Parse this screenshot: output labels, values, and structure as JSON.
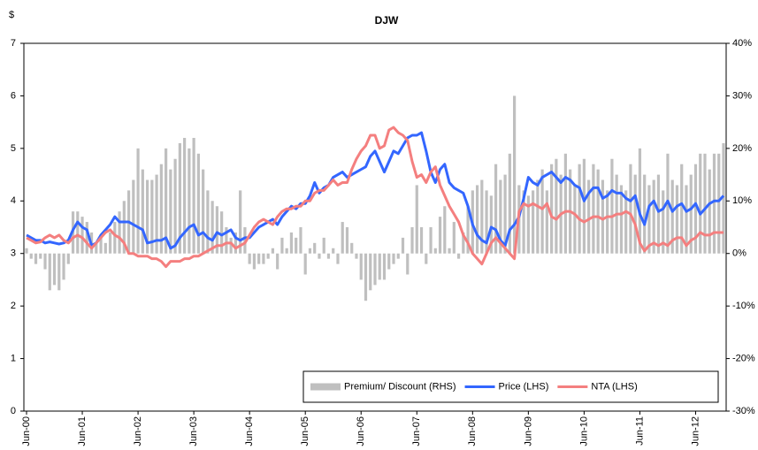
{
  "chart_data": {
    "type": "bar-line",
    "title": "DJW",
    "y_label": "$",
    "categories": [
      "Jun-00",
      null,
      null,
      null,
      null,
      null,
      null,
      null,
      null,
      null,
      null,
      null,
      "Jun-01",
      null,
      null,
      null,
      null,
      null,
      null,
      null,
      null,
      null,
      null,
      null,
      "Jun-02",
      null,
      null,
      null,
      null,
      null,
      null,
      null,
      null,
      null,
      null,
      null,
      "Jun-03",
      null,
      null,
      null,
      null,
      null,
      null,
      null,
      null,
      null,
      null,
      null,
      "Jun-04",
      null,
      null,
      null,
      null,
      null,
      null,
      null,
      null,
      null,
      null,
      null,
      "Jun-05",
      null,
      null,
      null,
      null,
      null,
      null,
      null,
      null,
      null,
      null,
      null,
      "Jun-06",
      null,
      null,
      null,
      null,
      null,
      null,
      null,
      null,
      null,
      null,
      null,
      "Jun-07",
      null,
      null,
      null,
      null,
      null,
      null,
      null,
      null,
      null,
      null,
      null,
      "Jun-08",
      null,
      null,
      null,
      null,
      null,
      null,
      null,
      null,
      null,
      null,
      null,
      "Jun-09",
      null,
      null,
      null,
      null,
      null,
      null,
      null,
      null,
      null,
      null,
      null,
      "Jun-10",
      null,
      null,
      null,
      null,
      null,
      null,
      null,
      null,
      null,
      null,
      null,
      "Jun-11",
      null,
      null,
      null,
      null,
      null,
      null,
      null,
      null,
      null,
      null,
      null,
      "Jun-12",
      null,
      null,
      null,
      null,
      null,
      null
    ],
    "series": [
      {
        "name": "Premium/ Discount (RHS)",
        "type": "bar",
        "axis": "y2",
        "color": "#bfbfbf",
        "values": [
          1,
          -1,
          -2,
          -1,
          -3,
          -7,
          -6,
          -7,
          -5,
          -2,
          8,
          8,
          7,
          6,
          4,
          2,
          3,
          2,
          4,
          6,
          8,
          10,
          12,
          14,
          20,
          16,
          14,
          14,
          15,
          17,
          20,
          16,
          18,
          21,
          22,
          20,
          22,
          19,
          16,
          12,
          10,
          9,
          8,
          5,
          3,
          4,
          12,
          5,
          -2,
          -3,
          -2,
          -2,
          -1,
          1,
          -3,
          3,
          1,
          4,
          3,
          5,
          -4,
          1,
          2,
          -1,
          3,
          -1,
          1,
          -2,
          6,
          5,
          2,
          -1,
          -5,
          -9,
          -7,
          -6,
          -5,
          -5,
          -3,
          -2,
          -1,
          3,
          -4,
          5,
          13,
          5,
          -2,
          5,
          1,
          7,
          9,
          1,
          6,
          -1,
          4,
          9,
          12,
          13,
          14,
          12,
          11,
          17,
          14,
          15,
          19,
          30,
          13,
          12,
          11,
          12,
          14,
          16,
          12,
          17,
          18,
          15,
          19,
          16,
          13,
          17,
          18,
          14,
          17,
          16,
          14,
          12,
          18,
          15,
          13,
          12,
          17,
          15,
          20,
          15,
          13,
          14,
          15,
          12,
          19,
          14,
          13,
          17,
          13,
          15,
          17,
          19,
          19,
          16,
          19,
          19,
          21
        ]
      },
      {
        "name": "Price (LHS)",
        "type": "line",
        "color": "#3366ff",
        "values": [
          3.35,
          3.3,
          3.25,
          3.25,
          3.2,
          3.22,
          3.2,
          3.18,
          3.2,
          3.25,
          3.45,
          3.6,
          3.5,
          3.45,
          3.15,
          3.2,
          3.35,
          3.45,
          3.55,
          3.7,
          3.6,
          3.6,
          3.6,
          3.55,
          3.5,
          3.45,
          3.2,
          3.22,
          3.25,
          3.25,
          3.3,
          3.1,
          3.15,
          3.3,
          3.4,
          3.5,
          3.55,
          3.35,
          3.4,
          3.3,
          3.25,
          3.4,
          3.35,
          3.4,
          3.45,
          3.3,
          3.25,
          3.3,
          3.3,
          3.4,
          3.5,
          3.55,
          3.6,
          3.65,
          3.55,
          3.7,
          3.8,
          3.9,
          3.85,
          3.95,
          3.95,
          4.1,
          4.35,
          4.15,
          4.25,
          4.3,
          4.45,
          4.5,
          4.55,
          4.45,
          4.5,
          4.55,
          4.6,
          4.65,
          4.85,
          4.95,
          4.75,
          4.55,
          4.75,
          4.95,
          4.9,
          5.05,
          5.2,
          5.25,
          5.25,
          5.3,
          4.95,
          4.55,
          4.35,
          4.6,
          4.7,
          4.35,
          4.25,
          4.2,
          4.15,
          3.9,
          3.55,
          3.35,
          3.25,
          3.2,
          3.5,
          3.45,
          3.25,
          3.15,
          3.45,
          3.55,
          3.7,
          4.05,
          4.45,
          4.35,
          4.3,
          4.45,
          4.5,
          4.55,
          4.45,
          4.35,
          4.45,
          4.4,
          4.3,
          4.25,
          4.0,
          4.15,
          4.25,
          4.25,
          4.05,
          4.1,
          4.2,
          4.15,
          4.15,
          4.05,
          4.0,
          4.1,
          3.75,
          3.55,
          3.9,
          4.0,
          3.8,
          3.85,
          4.0,
          3.8,
          3.9,
          3.95,
          3.8,
          3.85,
          3.95,
          3.75,
          3.85,
          3.95,
          4.0,
          4.0,
          4.1
        ]
      },
      {
        "name": "NTA (LHS)",
        "type": "line",
        "color": "#f47f7f",
        "values": [
          3.3,
          3.25,
          3.2,
          3.22,
          3.3,
          3.35,
          3.3,
          3.35,
          3.25,
          3.2,
          3.3,
          3.35,
          3.3,
          3.2,
          3.1,
          3.2,
          3.3,
          3.4,
          3.45,
          3.35,
          3.3,
          3.2,
          3.0,
          3.0,
          2.95,
          2.95,
          2.95,
          2.9,
          2.9,
          2.85,
          2.75,
          2.85,
          2.85,
          2.85,
          2.9,
          2.9,
          2.95,
          2.95,
          3.0,
          3.05,
          3.1,
          3.15,
          3.15,
          3.2,
          3.2,
          3.1,
          3.15,
          3.2,
          3.35,
          3.5,
          3.6,
          3.65,
          3.6,
          3.55,
          3.7,
          3.8,
          3.85,
          3.85,
          3.9,
          3.9,
          4.0,
          4.0,
          4.15,
          4.2,
          4.2,
          4.3,
          4.4,
          4.3,
          4.35,
          4.35,
          4.6,
          4.8,
          4.95,
          5.05,
          5.25,
          5.25,
          5.0,
          5.05,
          5.35,
          5.4,
          5.3,
          5.25,
          5.15,
          4.75,
          4.45,
          4.5,
          4.35,
          4.55,
          4.65,
          4.3,
          4.1,
          3.9,
          3.75,
          3.6,
          3.35,
          3.2,
          3.0,
          2.9,
          2.8,
          3.0,
          3.2,
          3.3,
          3.2,
          3.1,
          3.0,
          2.9,
          3.8,
          3.95,
          3.9,
          3.95,
          3.9,
          3.85,
          3.95,
          3.7,
          3.65,
          3.75,
          3.8,
          3.8,
          3.75,
          3.65,
          3.6,
          3.65,
          3.7,
          3.7,
          3.65,
          3.7,
          3.7,
          3.75,
          3.75,
          3.8,
          3.75,
          3.55,
          3.2,
          3.05,
          3.15,
          3.2,
          3.15,
          3.2,
          3.15,
          3.25,
          3.3,
          3.3,
          3.15,
          3.25,
          3.3,
          3.4,
          3.35,
          3.35,
          3.4,
          3.4,
          3.4
        ]
      }
    ],
    "ylim": [
      0,
      7
    ],
    "yticks": [
      0,
      1,
      2,
      3,
      4,
      5,
      6,
      7
    ],
    "y2lim": [
      -30,
      40
    ],
    "y2ticks": [
      {
        "value": -30,
        "label": "-30%"
      },
      {
        "value": -20,
        "label": "-20%"
      },
      {
        "value": -10,
        "label": "-10%"
      },
      {
        "value": 0,
        "label": "0%"
      },
      {
        "value": 10,
        "label": "10%"
      },
      {
        "value": 20,
        "label": "20%"
      },
      {
        "value": 30,
        "label": "30%"
      },
      {
        "value": 40,
        "label": "40%"
      }
    ],
    "grid": false,
    "legend": "bottom-right"
  }
}
